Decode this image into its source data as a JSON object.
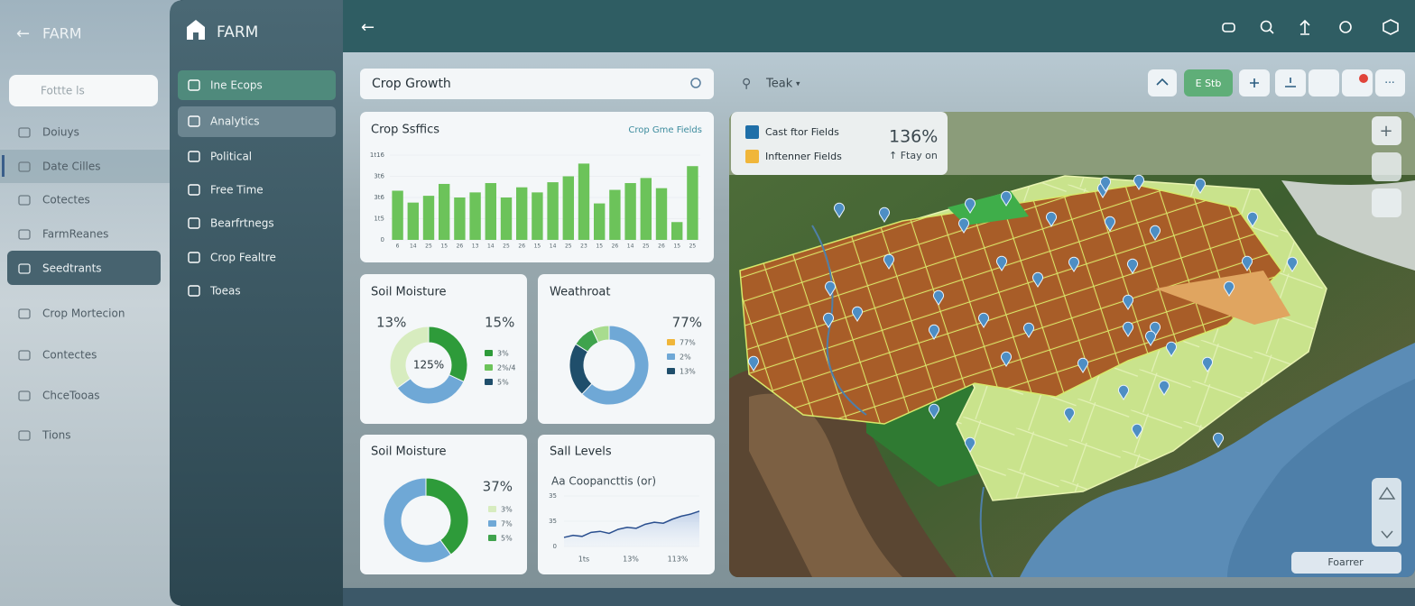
{
  "left_panel": {
    "title": "FARM",
    "search_placeholder": "Fottte ls",
    "items": [
      "Doiuys",
      "Date Cilles",
      "Cotectes",
      "FarmReanes",
      "Seedtrants",
      "Crop Mortecion",
      "Contectes",
      "ChceTooas",
      "Tions"
    ]
  },
  "sidebar": {
    "title": "FARM",
    "items": [
      "Ine Ecops",
      "Analytics",
      "Political",
      "Free Time",
      "Bearfrtnegs",
      "Crop Fealtre",
      "Toeas"
    ]
  },
  "search": {
    "query": "Crop Growth"
  },
  "crop_stats": {
    "type": "bar",
    "title": "Crop Ssffics",
    "link": "Crop Gme Fields",
    "categories": [
      "6",
      "14",
      "25",
      "15",
      "26",
      "13",
      "14",
      "25",
      "26",
      "15",
      "14",
      "25",
      "23",
      "15",
      "26",
      "14",
      "25",
      "26",
      "15",
      "25"
    ],
    "values": [
      58,
      44,
      52,
      66,
      50,
      56,
      67,
      50,
      62,
      56,
      68,
      75,
      90,
      43,
      59,
      67,
      73,
      61,
      21,
      87
    ],
    "color": "#6cc35a",
    "ylim": [
      0,
      100
    ],
    "yticks": [
      0,
      {
        "value": 25,
        "label": "1t5"
      },
      {
        "value": 50,
        "label": "3t6"
      },
      {
        "value": 75,
        "label": "3t6"
      },
      {
        "value": 100,
        "label": "1t16"
      }
    ]
  },
  "soil_moisture": {
    "type": "donut",
    "title": "Soil Moisture",
    "left_label": "13%",
    "right_label": "15%",
    "center_label": "125%",
    "values": [
      32,
      33,
      35
    ],
    "colors": [
      "#2e9b3a",
      "#6fa8d6",
      "#d7ecbf"
    ],
    "legend": [
      "3%",
      "2%/4",
      "5%"
    ],
    "legend_colors": [
      "#2e9b3a",
      "#6cc35a",
      "#1f4e6b"
    ]
  },
  "weather": {
    "type": "donut",
    "title": "Weathroat",
    "right_label": "77%",
    "values": [
      62,
      22,
      9,
      7
    ],
    "colors": [
      "#6fa8d6",
      "#1f4e6b",
      "#3fa34d",
      "#a8dc8e"
    ],
    "legend": [
      "77%",
      "2%",
      "13%"
    ],
    "legend_colors": [
      "#f0b63a",
      "#6fa8d6",
      "#1f4e6b"
    ]
  },
  "soil_moisture_2": {
    "type": "donut",
    "title": "Soil Moisture",
    "right_label": "37%",
    "values": [
      40,
      60
    ],
    "colors": [
      "#2e9b3a",
      "#6fa8d6"
    ],
    "legend": [
      "3%",
      "7%",
      "5%"
    ],
    "legend_colors": [
      "#d7ecbf",
      "#6fa8d6",
      "#3fa34d"
    ]
  },
  "soil_levels": {
    "type": "line",
    "title": "Sall Levels",
    "subtitle": "Aa Coopancttis (or)",
    "values": [
      18,
      22,
      20,
      28,
      30,
      26,
      34,
      38,
      36,
      44,
      48,
      46,
      54,
      60,
      64,
      70
    ],
    "color": "#2a4f8f",
    "ylim": [
      0,
      100
    ],
    "yticks": [
      0,
      {
        "value": 50,
        "label": "35"
      },
      {
        "value": 100,
        "label": "35"
      }
    ],
    "xtick_labels": [
      "1ts",
      "13%",
      "113%"
    ]
  },
  "map": {
    "search": "Teak",
    "filter_button": "E Stb",
    "legend": {
      "items": [
        "Cast ftor Fields",
        "Inftenner Fields"
      ],
      "colors": [
        "#1f6fa8",
        "#f0b63a"
      ],
      "value": "136%",
      "note": "↑ Ftay on"
    },
    "footer_button": "Foarrer"
  }
}
